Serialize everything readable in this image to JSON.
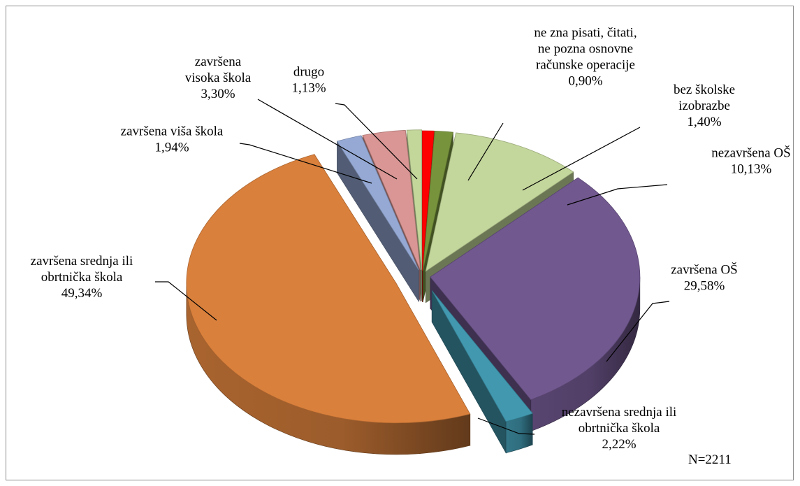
{
  "chart_data": {
    "type": "pie",
    "note_label": "N=2211",
    "slices": [
      {
        "label_lines": [
          "ne zna pisati, čitati,",
          "ne pozna osnovne",
          "računske operacije",
          "0,90%"
        ],
        "value": 0.9,
        "color": "#ff0000"
      },
      {
        "label_lines": [
          "bez školske",
          "izobrazbe",
          "1,40%"
        ],
        "value": 1.4,
        "color": "#77933c"
      },
      {
        "label_lines": [
          "nezavršena OŠ",
          "10,13%"
        ],
        "value": 10.13,
        "color": "#c3d69b"
      },
      {
        "label_lines": [
          "završena OŠ",
          "29,58%"
        ],
        "value": 29.58,
        "color": "#71588f"
      },
      {
        "label_lines": [
          "nezavršena srednja ili",
          "obrtnička škola",
          "2,22%"
        ],
        "value": 2.22,
        "color": "#4198af"
      },
      {
        "label_lines": [
          "završena srednja ili",
          "obrtnička škola",
          "49,34%"
        ],
        "value": 49.34,
        "color": "#d9803c"
      },
      {
        "label_lines": [
          "završena viša škola",
          "1,94%"
        ],
        "value": 1.94,
        "color": "#95a9d4"
      },
      {
        "label_lines": [
          "završena",
          "visoka škola",
          "3,30%"
        ],
        "value": 3.3,
        "color": "#d99694"
      },
      {
        "label_lines": [
          "drugo",
          "1,13%"
        ],
        "value": 1.13,
        "color": "#c4d79b"
      }
    ]
  }
}
